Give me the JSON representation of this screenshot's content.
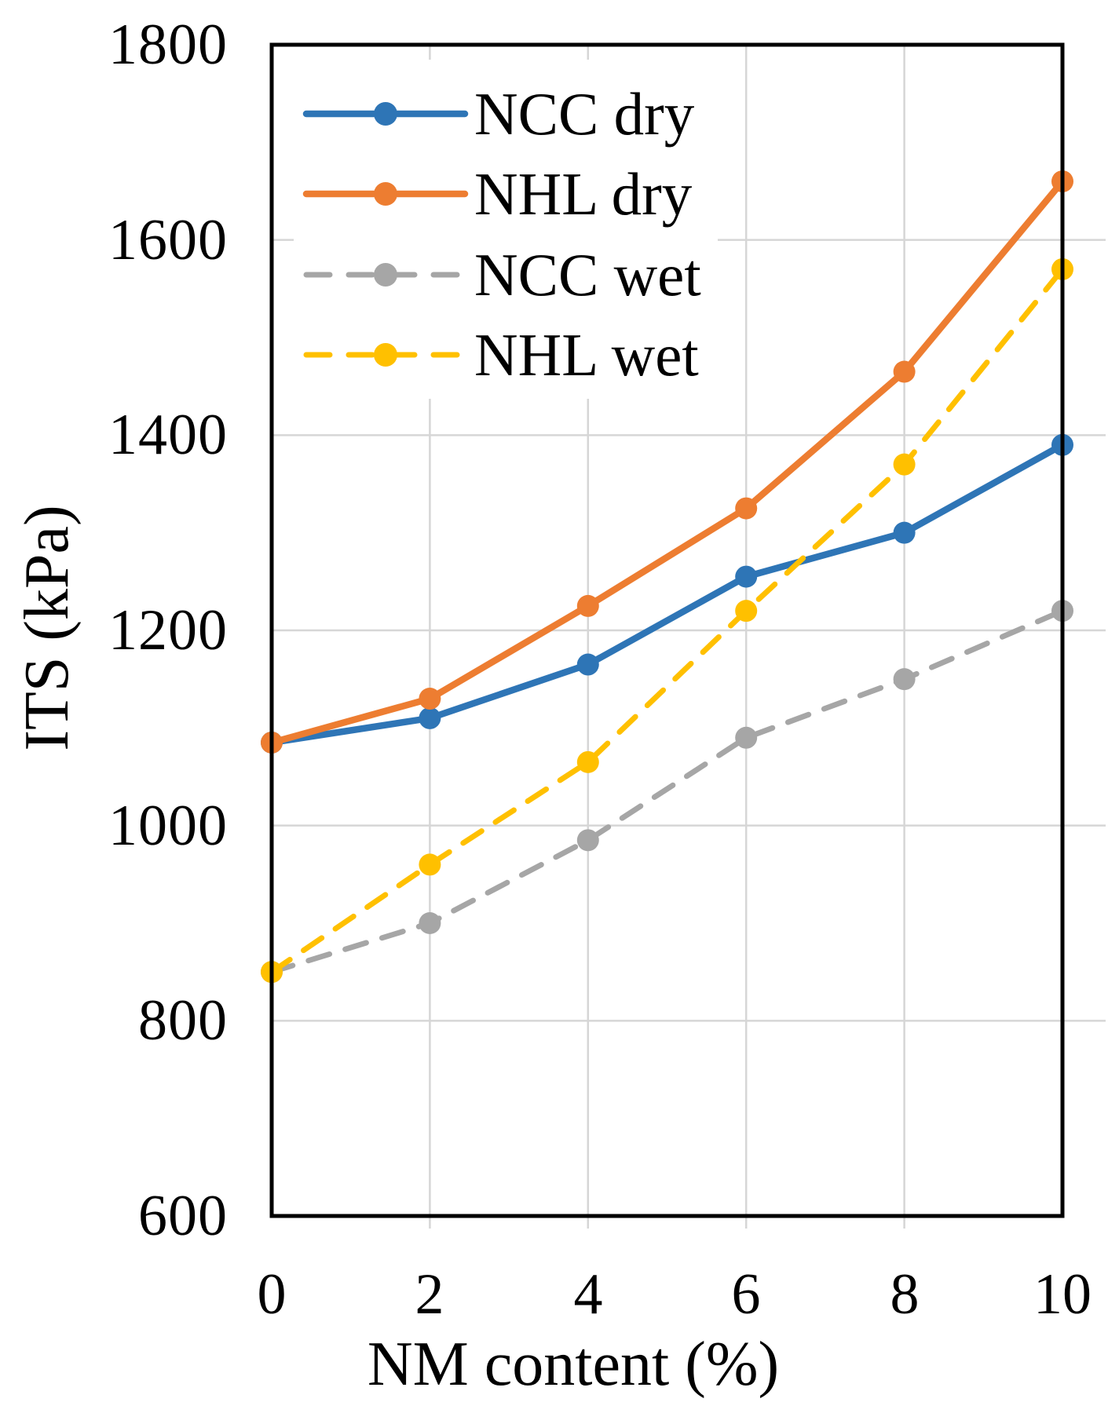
{
  "chart_data": {
    "type": "line",
    "title": "",
    "xlabel": "NM content (%)",
    "ylabel": "ITS (kPa)",
    "x": [
      0,
      2,
      4,
      6,
      8,
      10
    ],
    "xlim": [
      0,
      10
    ],
    "ylim": [
      600,
      1800
    ],
    "grid_step_x": 2,
    "grid_step_y": 200,
    "grid": true,
    "xticks": [
      "0",
      "2",
      "4",
      "6",
      "8",
      "10"
    ],
    "yticks": [
      "1800",
      "1600",
      "1400",
      "1200",
      "1000",
      "800",
      "600"
    ],
    "legend_position": "top-left-inside",
    "series": [
      {
        "name": "NCC dry",
        "color": "#2E75B6",
        "style": "solid",
        "marker": "circle",
        "values": [
          1085,
          1110,
          1165,
          1255,
          1300,
          1390
        ]
      },
      {
        "name": "NHL dry",
        "color": "#ED7D31",
        "style": "solid",
        "marker": "circle",
        "values": [
          1085,
          1130,
          1225,
          1325,
          1465,
          1660
        ]
      },
      {
        "name": "NCC wet",
        "color": "#A6A6A6",
        "style": "dashed",
        "marker": "circle",
        "values": [
          850,
          900,
          985,
          1090,
          1150,
          1220
        ]
      },
      {
        "name": "NHL wet",
        "color": "#FFC000",
        "style": "dashed",
        "marker": "circle",
        "values": [
          850,
          960,
          1065,
          1220,
          1370,
          1570
        ]
      }
    ],
    "colors": {
      "grid": "#D6D6D6",
      "border": "#000000",
      "background": "#FFFFFF",
      "text": "#000000"
    }
  }
}
